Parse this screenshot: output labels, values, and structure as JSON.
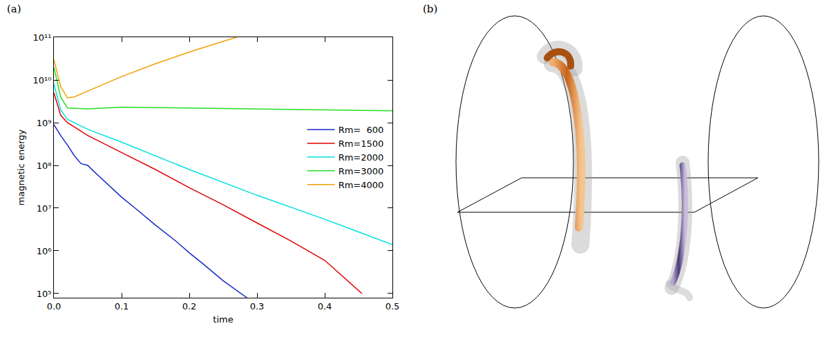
{
  "panel_labels": [
    "(a)",
    "(b)"
  ],
  "chart_data": {
    "type": "line",
    "x_label": "time",
    "y_label": "magnetic energy",
    "log": "y",
    "grid": false,
    "legend": "right",
    "xlim": [
      0,
      0.5
    ],
    "xticks": [
      {
        "value": 0,
        "label": "0.0"
      },
      {
        "value": 0.1,
        "label": "0.1"
      },
      {
        "value": 0.2,
        "label": "0.2"
      },
      {
        "value": 0.3,
        "label": "0.3"
      },
      {
        "value": 0.4,
        "label": "0.4"
      },
      {
        "value": 0.5,
        "label": "0.5"
      }
    ],
    "ylim": [
      80000,
      100000000000
    ],
    "yticks": [
      {
        "value": 100000,
        "label": "10⁵"
      },
      {
        "value": 1000000,
        "label": "10⁶"
      },
      {
        "value": 10000000,
        "label": "10⁷"
      },
      {
        "value": 100000000,
        "label": "10⁸"
      },
      {
        "value": 1000000000,
        "label": "10⁹"
      },
      {
        "value": 10000000000,
        "label": "10¹⁰"
      },
      {
        "value": 100000000000,
        "label": "10¹¹"
      }
    ],
    "series": [
      {
        "name": "Rm=  600",
        "color": "#1428c8",
        "x": [
          0,
          0.01,
          0.02,
          0.03,
          0.04,
          0.05,
          0.06,
          0.08,
          0.1,
          0.12,
          0.15,
          0.18,
          0.2,
          0.22,
          0.25,
          0.285
        ],
        "values": [
          900000000,
          500000000,
          300000000,
          170000000,
          110000000,
          100000000,
          70000000,
          35000000,
          18000000,
          10000000,
          4000000,
          1700000,
          900000,
          500000,
          200000,
          80000
        ]
      },
      {
        "name": "Rm=1500",
        "color": "#e00000",
        "x": [
          0,
          0.01,
          0.02,
          0.05,
          0.1,
          0.15,
          0.2,
          0.25,
          0.3,
          0.35,
          0.4,
          0.455
        ],
        "values": [
          5000000000,
          1500000000,
          1000000000,
          500000000,
          200000000,
          80000000,
          30000000,
          12000000,
          4500000,
          1700000,
          600000,
          100000
        ]
      },
      {
        "name": "Rm=2000",
        "color": "#00e0e0",
        "x": [
          0,
          0.01,
          0.02,
          0.05,
          0.1,
          0.2,
          0.3,
          0.4,
          0.5
        ],
        "values": [
          8000000000,
          2000000000,
          1200000000,
          700000000,
          350000000,
          80000000,
          20000000,
          5500000,
          1400000
        ]
      },
      {
        "name": "Rm=3000",
        "color": "#22dd22",
        "x": [
          0,
          0.01,
          0.02,
          0.05,
          0.1,
          0.2,
          0.3,
          0.4,
          0.5
        ],
        "values": [
          20000000000,
          4000000000,
          2200000000,
          2100000000,
          2300000000,
          2200000000,
          2100000000,
          2000000000,
          1900000000
        ]
      },
      {
        "name": "Rm=4000",
        "color": "#f0a000",
        "x": [
          0,
          0.01,
          0.02,
          0.03,
          0.05,
          0.1,
          0.15,
          0.2,
          0.25,
          0.27
        ],
        "values": [
          30000000000,
          7000000000,
          3800000000,
          4000000000,
          5500000000,
          12000000000,
          24000000000,
          45000000000,
          80000000000,
          100000000000
        ]
      }
    ]
  }
}
